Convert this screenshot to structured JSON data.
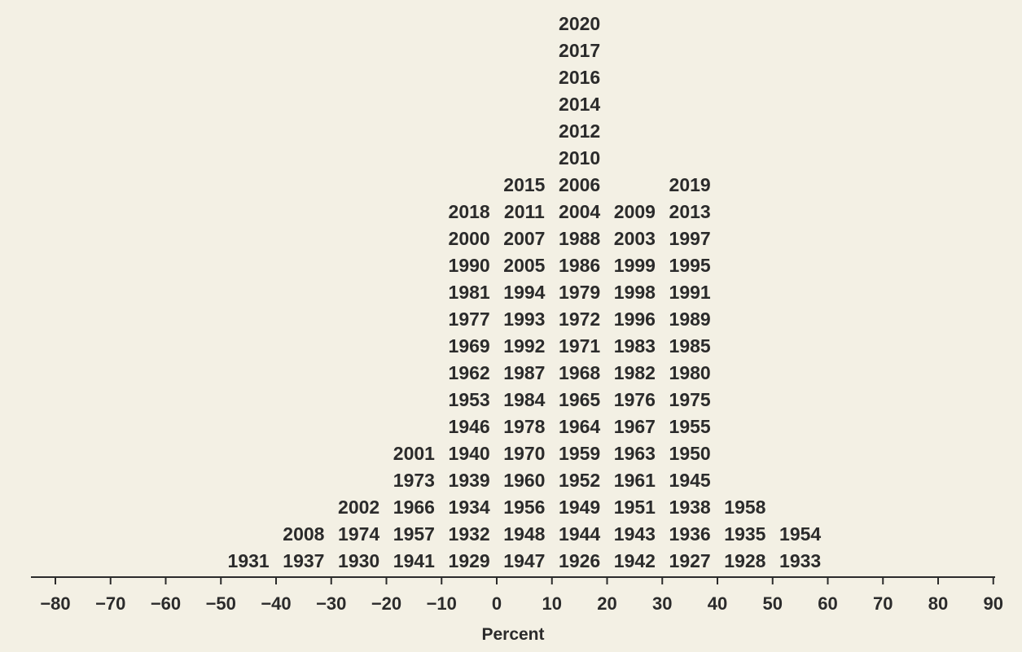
{
  "chart_data": {
    "type": "histogram",
    "xlabel": "Percent",
    "title": "",
    "ticks": [
      "−80",
      "−70",
      "−60",
      "−50",
      "−40",
      "−30",
      "−20",
      "−10",
      "0",
      "10",
      "20",
      "30",
      "40",
      "50",
      "60",
      "70",
      "80",
      "90"
    ],
    "tick_values": [
      -80,
      -70,
      -60,
      -50,
      -40,
      -30,
      -20,
      -10,
      0,
      10,
      20,
      30,
      40,
      50,
      60,
      70,
      80,
      90
    ],
    "xlim": [
      -80,
      90
    ],
    "bins": [
      {
        "range": [
          -50,
          -40
        ],
        "years": [
          "1931"
        ]
      },
      {
        "range": [
          -40,
          -30
        ],
        "years": [
          "1937",
          "2008"
        ]
      },
      {
        "range": [
          -30,
          -20
        ],
        "years": [
          "1930",
          "1974",
          "2002"
        ]
      },
      {
        "range": [
          -20,
          -10
        ],
        "years": [
          "1941",
          "1957",
          "1966",
          "1973",
          "2001"
        ]
      },
      {
        "range": [
          -10,
          0
        ],
        "years": [
          "1929",
          "1932",
          "1934",
          "1939",
          "1940",
          "1946",
          "1953",
          "1962",
          "1969",
          "1977",
          "1981",
          "1990",
          "2000",
          "2018"
        ]
      },
      {
        "range": [
          0,
          10
        ],
        "years": [
          "1947",
          "1948",
          "1956",
          "1960",
          "1970",
          "1978",
          "1984",
          "1987",
          "1992",
          "1993",
          "1994",
          "2005",
          "2007",
          "2011",
          "2015"
        ]
      },
      {
        "range": [
          10,
          20
        ],
        "years": [
          "1926",
          "1944",
          "1949",
          "1952",
          "1959",
          "1964",
          "1965",
          "1968",
          "1971",
          "1972",
          "1979",
          "1986",
          "1988",
          "2004",
          "2006",
          "2010",
          "2012",
          "2014",
          "2016",
          "2017",
          "2020"
        ]
      },
      {
        "range": [
          20,
          30
        ],
        "years": [
          "1942",
          "1943",
          "1951",
          "1961",
          "1963",
          "1967",
          "1976",
          "1982",
          "1983",
          "1996",
          "1998",
          "1999",
          "2003",
          "2009"
        ]
      },
      {
        "range": [
          30,
          40
        ],
        "years": [
          "1927",
          "1936",
          "1938",
          "1945",
          "1950",
          "1955",
          "1975",
          "1980",
          "1985",
          "1989",
          "1991",
          "1995",
          "1997",
          "2013",
          "2019"
        ]
      },
      {
        "range": [
          40,
          50
        ],
        "years": [
          "1928",
          "1935",
          "1958"
        ]
      },
      {
        "range": [
          50,
          60
        ],
        "years": [
          "1933",
          "1954"
        ]
      }
    ],
    "colors": {
      "background": "#f3f0e4",
      "text": "#2b2b2b",
      "axis": "#2b2b2b"
    }
  }
}
